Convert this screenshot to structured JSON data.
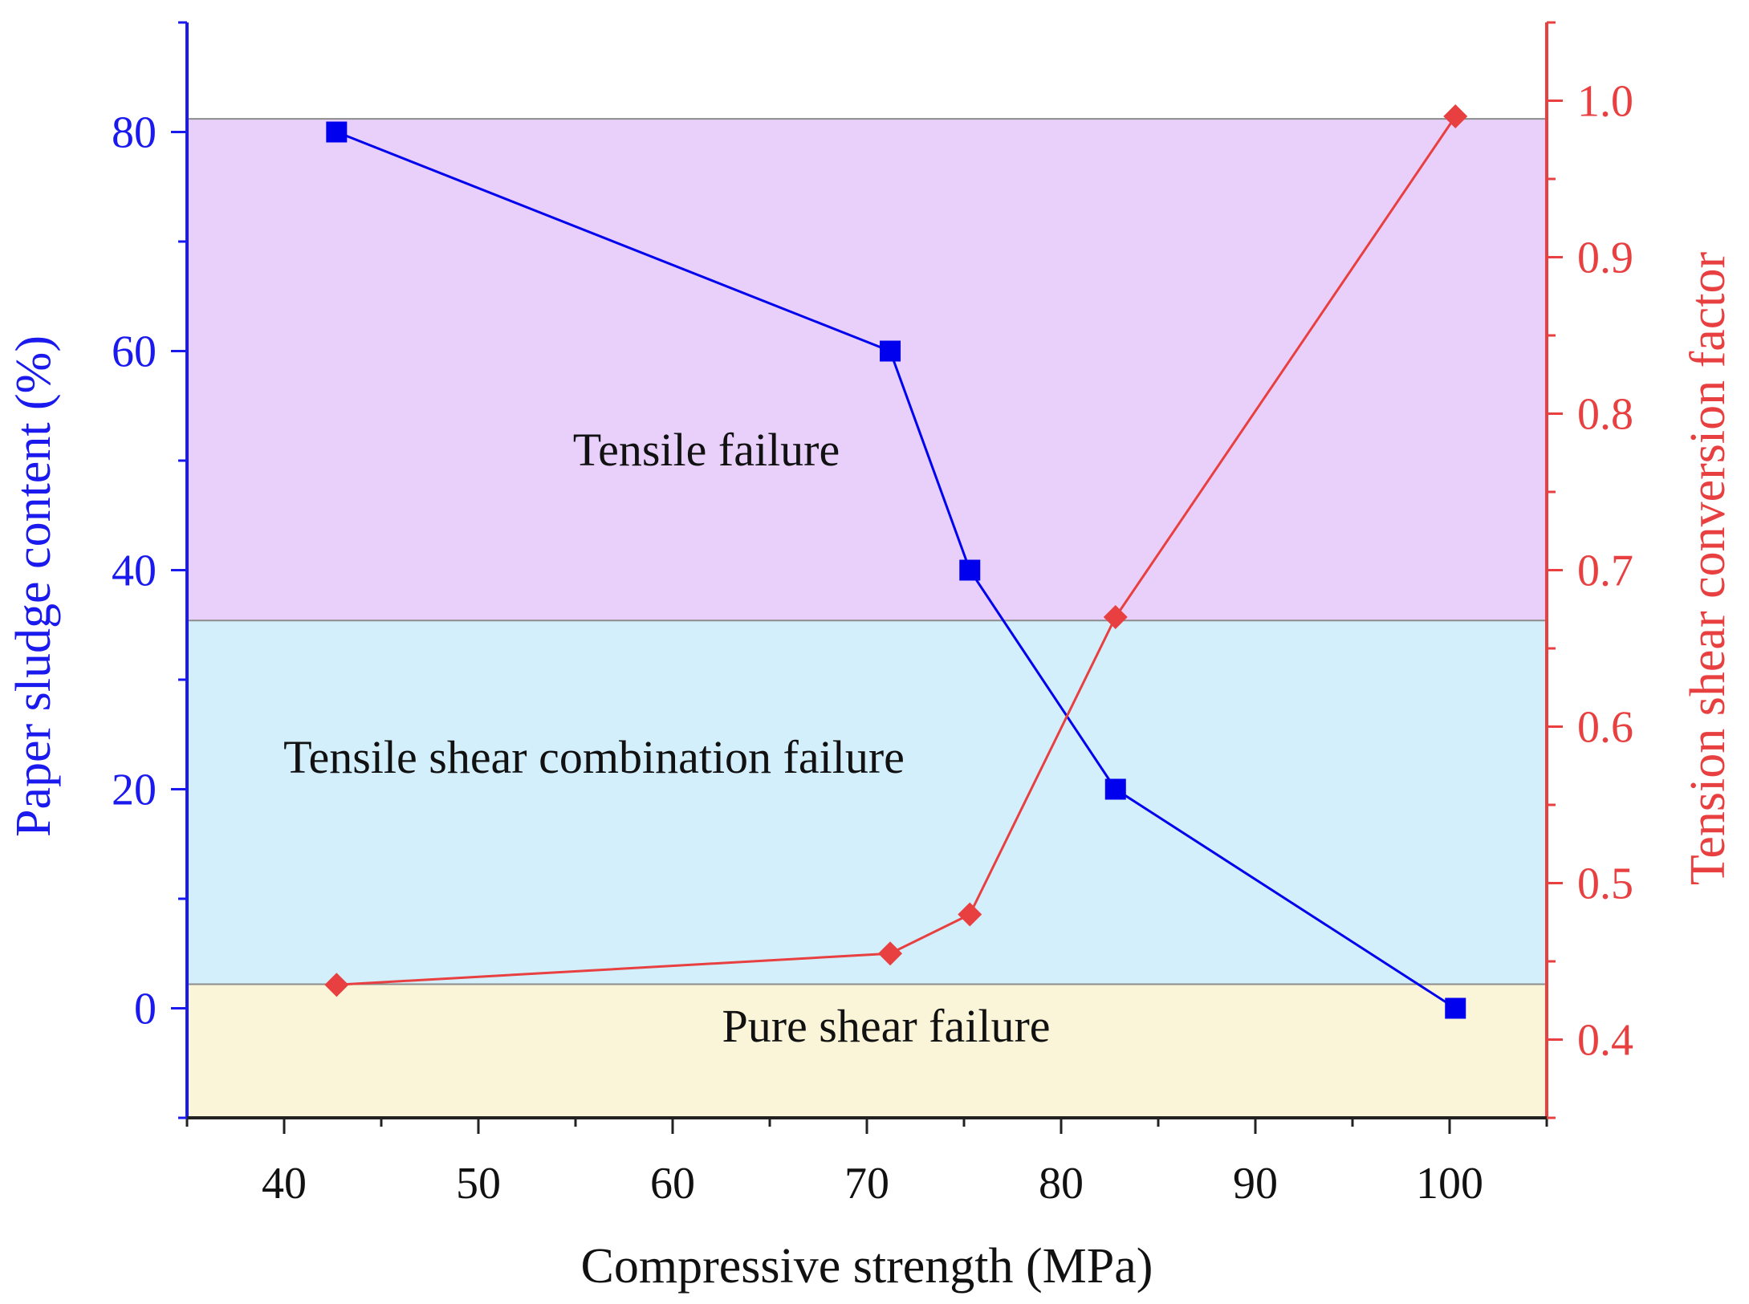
{
  "chart_data": {
    "type": "line",
    "title": "",
    "xlabel": "Compressive strength (MPa)",
    "ylabel_left": "Paper sludge content (%)",
    "ylabel_right": "Tension shear conversion factor",
    "xlim": [
      35,
      105
    ],
    "ylim_left": [
      -10,
      90
    ],
    "ylim_right": [
      0.35,
      1.05
    ],
    "x_ticks": [
      40,
      50,
      60,
      70,
      80,
      90,
      100
    ],
    "y_left_ticks": [
      0,
      20,
      40,
      60,
      80
    ],
    "y_right_ticks": [
      "0.4",
      "0.5",
      "0.6",
      "0.7",
      "0.8",
      "0.9",
      "1.0"
    ],
    "regions": [
      {
        "name": "tensile",
        "label": "Tensile failure",
        "y_from": 35.4,
        "y_to": 81.2,
        "color": "#e8d0fb"
      },
      {
        "name": "combination",
        "label": "Tensile shear combination failure",
        "y_from": 2.2,
        "y_to": 35.4,
        "color": "#d3effc"
      },
      {
        "name": "shear",
        "label": "Pure shear failure",
        "y_from": -10,
        "y_to": 2.2,
        "color": "#faf5d9"
      }
    ],
    "series": [
      {
        "name": "Paper sludge content",
        "axis": "left",
        "marker": "square",
        "color": "#0000ee",
        "x": [
          42.7,
          71.2,
          75.3,
          82.8,
          100.3
        ],
        "y": [
          80,
          60,
          40,
          20,
          0
        ]
      },
      {
        "name": "Tension shear conversion factor",
        "axis": "right",
        "marker": "diamond",
        "color": "#e84040",
        "x": [
          42.7,
          71.2,
          75.3,
          82.8,
          100.3
        ],
        "y": [
          0.435,
          0.455,
          0.48,
          0.67,
          0.99
        ]
      }
    ],
    "colors": {
      "left_axis": "#1a1aee",
      "right_axis": "#e84040",
      "x_axis": "#222222"
    }
  }
}
